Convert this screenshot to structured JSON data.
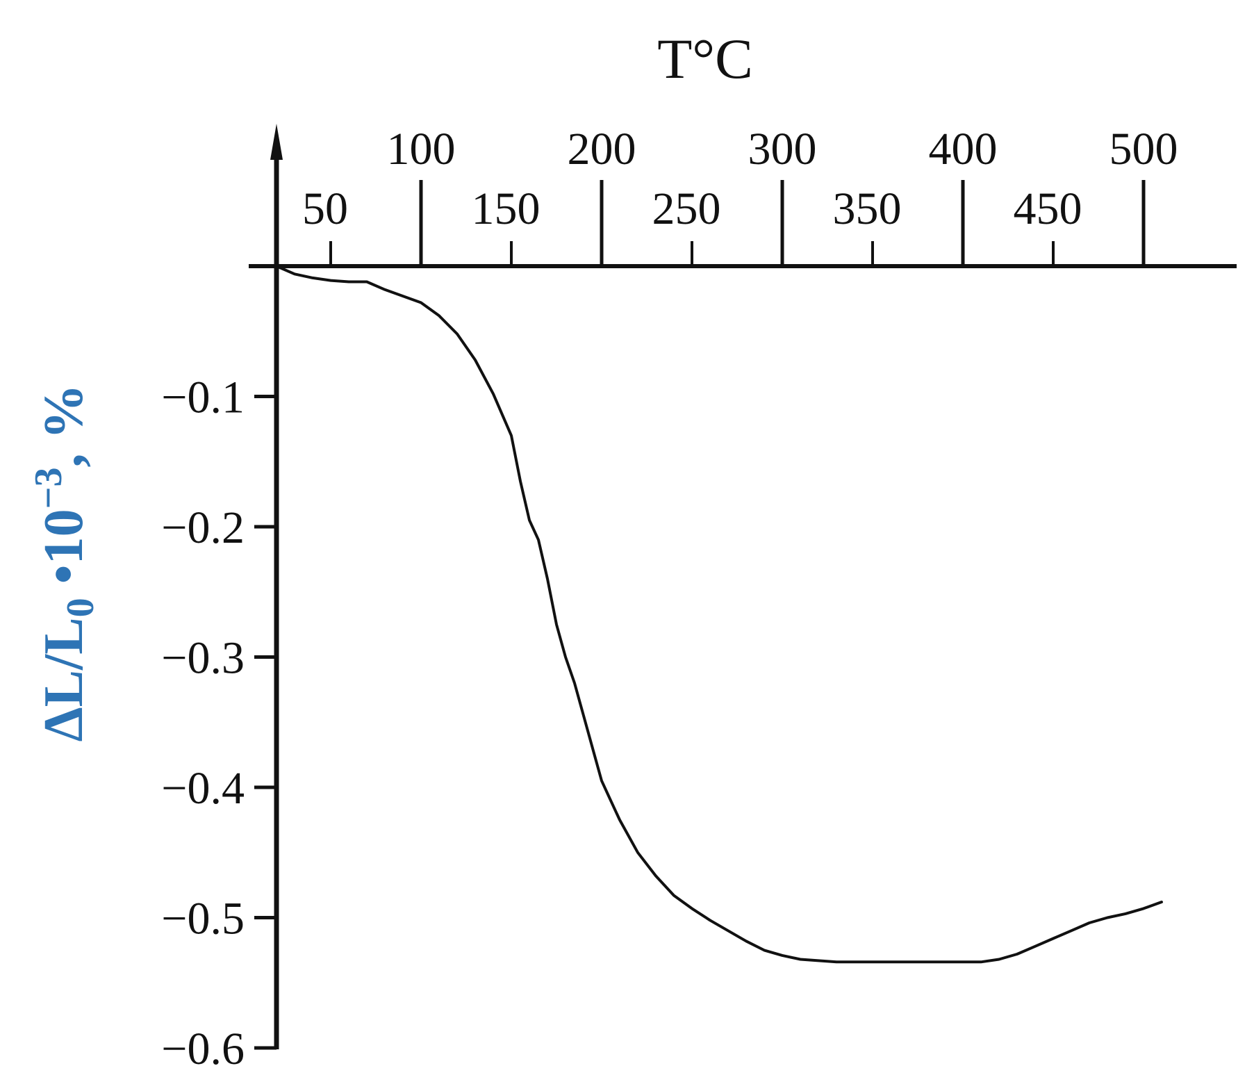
{
  "chart_data": {
    "type": "line",
    "title": "",
    "xlabel": "T°C",
    "ylabel": {
      "main": "ΔL/L",
      "subscript": "0",
      "middle": " •10",
      "superscript": "−3",
      "suffix": ", %"
    },
    "xlim": [
      20,
      540
    ],
    "ylim": [
      -0.6,
      0
    ],
    "x_ticks_major": [
      {
        "value": 100,
        "label": "100"
      },
      {
        "value": 200,
        "label": "200"
      },
      {
        "value": 300,
        "label": "300"
      },
      {
        "value": 400,
        "label": "400"
      },
      {
        "value": 500,
        "label": "500"
      }
    ],
    "x_ticks_minor": [
      {
        "value": 50,
        "label": "50"
      },
      {
        "value": 150,
        "label": "150"
      },
      {
        "value": 250,
        "label": "250"
      },
      {
        "value": 350,
        "label": "350"
      },
      {
        "value": 450,
        "label": "450"
      }
    ],
    "y_ticks": [
      {
        "value": -0.1,
        "label": "−0.1"
      },
      {
        "value": -0.2,
        "label": "−0.2"
      },
      {
        "value": -0.3,
        "label": "−0.3"
      },
      {
        "value": -0.4,
        "label": "−0.4"
      },
      {
        "value": -0.5,
        "label": "−0.5"
      },
      {
        "value": -0.6,
        "label": "−0.6"
      }
    ],
    "grid": false,
    "colors": {
      "line": "#111111",
      "axis": "#111111",
      "ylabel": "#2e74b5"
    },
    "series": [
      {
        "x": [
          20,
          30,
          40,
          50,
          60,
          70,
          80,
          90,
          100,
          110,
          120,
          130,
          140,
          150,
          155,
          160,
          165,
          170,
          175,
          180,
          185,
          190,
          195,
          200,
          205,
          210,
          220,
          230,
          240,
          250,
          260,
          270,
          280,
          290,
          300,
          310,
          320,
          330,
          340,
          350,
          360,
          370,
          380,
          390,
          400,
          410,
          420,
          430,
          440,
          450,
          460,
          470,
          480,
          490,
          500,
          510
        ],
        "y": [
          0,
          -0.006,
          -0.009,
          -0.011,
          -0.012,
          -0.012,
          -0.018,
          -0.023,
          -0.028,
          -0.038,
          -0.052,
          -0.072,
          -0.098,
          -0.13,
          -0.165,
          -0.195,
          -0.21,
          -0.24,
          -0.275,
          -0.3,
          -0.32,
          -0.345,
          -0.37,
          -0.395,
          -0.41,
          -0.425,
          -0.45,
          -0.468,
          -0.483,
          -0.493,
          -0.502,
          -0.51,
          -0.518,
          -0.525,
          -0.529,
          -0.532,
          -0.533,
          -0.534,
          -0.534,
          -0.534,
          -0.534,
          -0.534,
          -0.534,
          -0.534,
          -0.534,
          -0.534,
          -0.532,
          -0.528,
          -0.522,
          -0.516,
          -0.51,
          -0.504,
          -0.5,
          -0.497,
          -0.493,
          -0.488
        ]
      }
    ]
  }
}
